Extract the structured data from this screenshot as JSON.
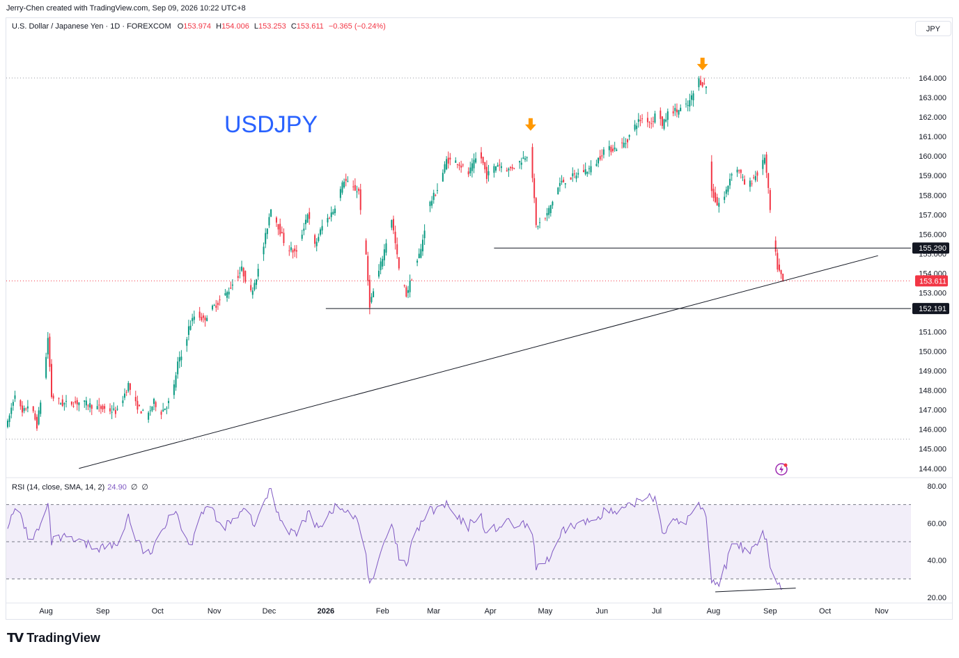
{
  "credit": "Jerry-Chen created with TradingView.com, Sep 09, 2026 10:22 UTC+8",
  "legend": {
    "symbol": "U.S. Dollar / Japanese Yen · 1D · FOREXCOM",
    "o_label": "O",
    "o": "153.974",
    "h_label": "H",
    "h": "154.006",
    "l_label": "L",
    "l": "153.253",
    "c_label": "C",
    "c": "153.611",
    "change": "−0.365 (−0.24%)"
  },
  "currency_button": "JPY",
  "annotation_title": "USDJPY",
  "rsi_legend": {
    "label": "RSI (14, close, SMA, 14, 2)",
    "value": "24.90",
    "extra1": "∅",
    "extra2": "∅"
  },
  "brand": {
    "name": "TradingView"
  },
  "colors": {
    "up": "#089981",
    "down": "#f23645",
    "rsi": "#7e57c2",
    "rsi_band": "#ede7f6",
    "title": "#2962ff",
    "arrow": "#ff9800"
  },
  "chart_data": [
    {
      "type": "candlestick",
      "title": "USDJPY",
      "ylim": [
        143.6,
        165.0
      ],
      "y_ticks": [
        "164.000",
        "163.000",
        "162.000",
        "161.000",
        "160.000",
        "159.000",
        "158.000",
        "157.000",
        "156.000",
        "155.000",
        "154.000",
        "153.000",
        "151.000",
        "150.000",
        "149.000",
        "148.000",
        "147.000",
        "146.000",
        "145.000",
        "144.000"
      ],
      "x_ticks": [
        "Aug",
        "Sep",
        "Oct",
        "Nov",
        "Dec",
        "2026",
        "Feb",
        "Mar",
        "Apr",
        "May",
        "Jun",
        "Jul",
        "Aug",
        "Sep",
        "Oct",
        "Nov"
      ],
      "x_tick_days": [
        21,
        52,
        82,
        113,
        143,
        174,
        205,
        233,
        264,
        294,
        325,
        355,
        386,
        417,
        447,
        478
      ],
      "last_day": 424,
      "price_series": [
        [
          0,
          146.3
        ],
        [
          4,
          147.9
        ],
        [
          8,
          146.8
        ],
        [
          12,
          147.4
        ],
        [
          16,
          146.2
        ],
        [
          20,
          148.7
        ],
        [
          22,
          150.7
        ],
        [
          24,
          147.7
        ],
        [
          30,
          147.3
        ],
        [
          40,
          147.4
        ],
        [
          50,
          147.1
        ],
        [
          60,
          146.9
        ],
        [
          66,
          148.3
        ],
        [
          70,
          147.3
        ],
        [
          76,
          146.6
        ],
        [
          80,
          147.4
        ],
        [
          84,
          146.9
        ],
        [
          90,
          147.6
        ],
        [
          93,
          149.4
        ],
        [
          96,
          149.9
        ],
        [
          99,
          151.2
        ],
        [
          103,
          152.0
        ],
        [
          107,
          151.6
        ],
        [
          112,
          152.2
        ],
        [
          120,
          153.0
        ],
        [
          128,
          154.2
        ],
        [
          133,
          153.0
        ],
        [
          138,
          154.4
        ],
        [
          144,
          157.4
        ],
        [
          148,
          156.4
        ],
        [
          152,
          155.4
        ],
        [
          158,
          155.0
        ],
        [
          164,
          157.1
        ],
        [
          168,
          155.4
        ],
        [
          172,
          156.4
        ],
        [
          178,
          157.2
        ],
        [
          184,
          158.8
        ],
        [
          188,
          158.4
        ],
        [
          192,
          158.2
        ],
        [
          196,
          154.8
        ],
        [
          198,
          152.4
        ],
        [
          202,
          153.7
        ],
        [
          206,
          155.2
        ],
        [
          210,
          156.8
        ],
        [
          214,
          154.2
        ],
        [
          218,
          152.9
        ],
        [
          222,
          154.1
        ],
        [
          226,
          155.2
        ],
        [
          230,
          157.4
        ],
        [
          236,
          158.5
        ],
        [
          240,
          159.8
        ],
        [
          246,
          159.7
        ],
        [
          252,
          159.1
        ],
        [
          258,
          160.2
        ],
        [
          262,
          159.0
        ],
        [
          268,
          159.6
        ],
        [
          274,
          159.3
        ],
        [
          280,
          159.7
        ],
        [
          286,
          160.3
        ],
        [
          289,
          156.4
        ],
        [
          294,
          156.8
        ],
        [
          298,
          157.7
        ],
        [
          302,
          158.6
        ],
        [
          306,
          158.8
        ],
        [
          314,
          159.2
        ],
        [
          320,
          159.4
        ],
        [
          326,
          160.3
        ],
        [
          332,
          160.4
        ],
        [
          338,
          160.7
        ],
        [
          344,
          161.7
        ],
        [
          348,
          162.0
        ],
        [
          352,
          161.7
        ],
        [
          356,
          162.5
        ],
        [
          358,
          161.5
        ],
        [
          362,
          162.4
        ],
        [
          366,
          162.3
        ],
        [
          372,
          162.6
        ],
        [
          376,
          163.4
        ],
        [
          378,
          163.9
        ],
        [
          380,
          163.7
        ],
        [
          382,
          163.6
        ],
        [
          383,
          161.0
        ],
        [
          385,
          158.2
        ],
        [
          388,
          157.5
        ],
        [
          392,
          157.9
        ],
        [
          396,
          159.2
        ],
        [
          400,
          159.3
        ],
        [
          404,
          158.3
        ],
        [
          408,
          158.9
        ],
        [
          412,
          159.3
        ],
        [
          414,
          160.0
        ],
        [
          416,
          158.2
        ],
        [
          418,
          156.2
        ],
        [
          421,
          154.3
        ],
        [
          424,
          153.611
        ]
      ],
      "horizontal_levels": [
        {
          "label": "155.290",
          "value": 155.29,
          "from_day": 266
        },
        {
          "label": "152.191",
          "value": 152.191,
          "from_day": 174
        }
      ],
      "last_price": {
        "label": "153.611",
        "value": 153.611
      },
      "dotted_levels": [
        164.0,
        145.5
      ],
      "trendline": [
        {
          "day": 39,
          "price": 144.0
        },
        {
          "day": 476,
          "price": 154.9
        }
      ],
      "markers": [
        {
          "type": "arrow-down",
          "day": 286,
          "price": 161.3
        },
        {
          "type": "arrow-down",
          "day": 380,
          "price": 164.4
        }
      ]
    },
    {
      "type": "line",
      "name": "RSI (14, close, SMA, 14, 2)",
      "ylim": [
        17.0,
        83.0
      ],
      "y_ticks": [
        "80.00",
        "60.00",
        "40.00",
        "20.00"
      ],
      "bands": {
        "upper": 70,
        "middle": 50,
        "lower": 30
      },
      "last_value": 24.9,
      "rsi_series": [
        [
          0,
          60
        ],
        [
          6,
          68
        ],
        [
          12,
          50
        ],
        [
          18,
          58
        ],
        [
          22,
          70
        ],
        [
          24,
          50
        ],
        [
          30,
          52
        ],
        [
          40,
          49
        ],
        [
          50,
          47
        ],
        [
          60,
          48
        ],
        [
          66,
          64
        ],
        [
          70,
          52
        ],
        [
          76,
          42
        ],
        [
          82,
          49
        ],
        [
          88,
          65
        ],
        [
          92,
          67
        ],
        [
          96,
          56
        ],
        [
          100,
          47
        ],
        [
          104,
          64
        ],
        [
          110,
          70
        ],
        [
          116,
          58
        ],
        [
          122,
          60
        ],
        [
          130,
          67
        ],
        [
          136,
          58
        ],
        [
          140,
          72
        ],
        [
          144,
          78
        ],
        [
          148,
          65
        ],
        [
          152,
          58
        ],
        [
          158,
          54
        ],
        [
          164,
          65
        ],
        [
          168,
          60
        ],
        [
          172,
          60
        ],
        [
          178,
          68
        ],
        [
          184,
          67
        ],
        [
          188,
          64
        ],
        [
          192,
          60
        ],
        [
          196,
          42
        ],
        [
          198,
          28
        ],
        [
          202,
          35
        ],
        [
          206,
          50
        ],
        [
          210,
          58
        ],
        [
          214,
          42
        ],
        [
          218,
          36
        ],
        [
          222,
          52
        ],
        [
          226,
          60
        ],
        [
          230,
          66
        ],
        [
          236,
          68
        ],
        [
          240,
          70
        ],
        [
          246,
          62
        ],
        [
          252,
          58
        ],
        [
          258,
          66
        ],
        [
          262,
          54
        ],
        [
          268,
          58
        ],
        [
          274,
          60
        ],
        [
          280,
          58
        ],
        [
          286,
          60
        ],
        [
          289,
          37
        ],
        [
          294,
          40
        ],
        [
          298,
          42
        ],
        [
          302,
          52
        ],
        [
          306,
          58
        ],
        [
          314,
          60
        ],
        [
          320,
          61
        ],
        [
          326,
          67
        ],
        [
          332,
          65
        ],
        [
          338,
          67
        ],
        [
          344,
          72
        ],
        [
          348,
          74
        ],
        [
          352,
          76
        ],
        [
          356,
          70
        ],
        [
          358,
          55
        ],
        [
          362,
          60
        ],
        [
          366,
          60
        ],
        [
          372,
          62
        ],
        [
          376,
          68
        ],
        [
          380,
          70
        ],
        [
          382,
          64
        ],
        [
          383,
          40
        ],
        [
          385,
          30
        ],
        [
          388,
          26
        ],
        [
          392,
          36
        ],
        [
          396,
          46
        ],
        [
          400,
          48
        ],
        [
          404,
          44
        ],
        [
          408,
          46
        ],
        [
          412,
          52
        ],
        [
          414,
          54
        ],
        [
          416,
          44
        ],
        [
          418,
          34
        ],
        [
          421,
          28
        ],
        [
          424,
          24.9
        ]
      ],
      "divergence_line": [
        {
          "day": 387,
          "value": 23
        },
        {
          "day": 431,
          "value": 25
        }
      ]
    }
  ]
}
